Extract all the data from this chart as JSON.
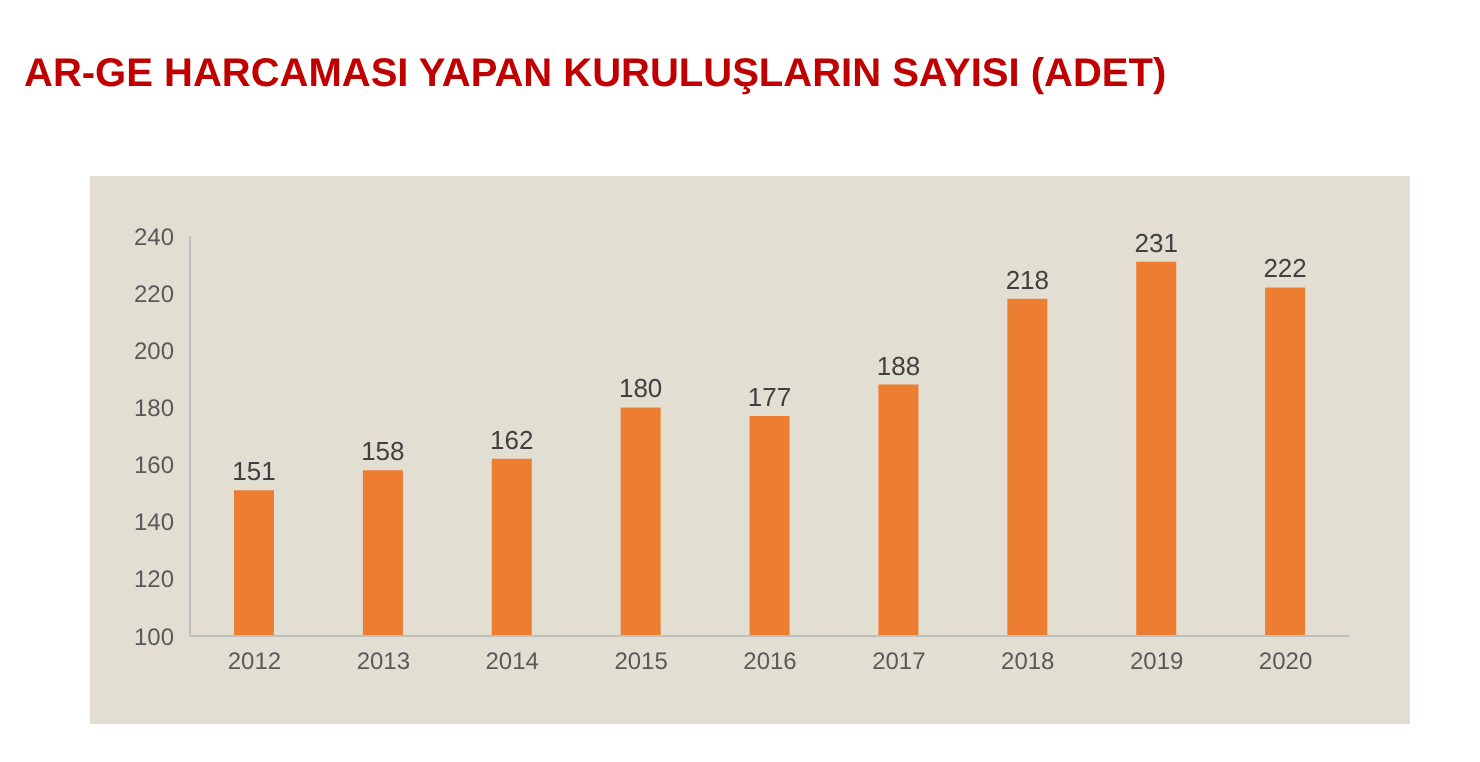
{
  "chart_data": {
    "type": "bar",
    "title": "AR-GE HARCAMASI YAPAN KURULUŞLARIN SAYISI (ADET)",
    "categories": [
      "2012",
      "2013",
      "2014",
      "2015",
      "2016",
      "2017",
      "2018",
      "2019",
      "2020"
    ],
    "values": [
      151,
      158,
      162,
      180,
      177,
      188,
      218,
      231,
      222
    ],
    "color": "#ed7d31",
    "ylim": [
      100,
      240
    ],
    "yticks": [
      100,
      120,
      140,
      160,
      180,
      200,
      220,
      240
    ],
    "grid": false,
    "data_labels": true
  }
}
